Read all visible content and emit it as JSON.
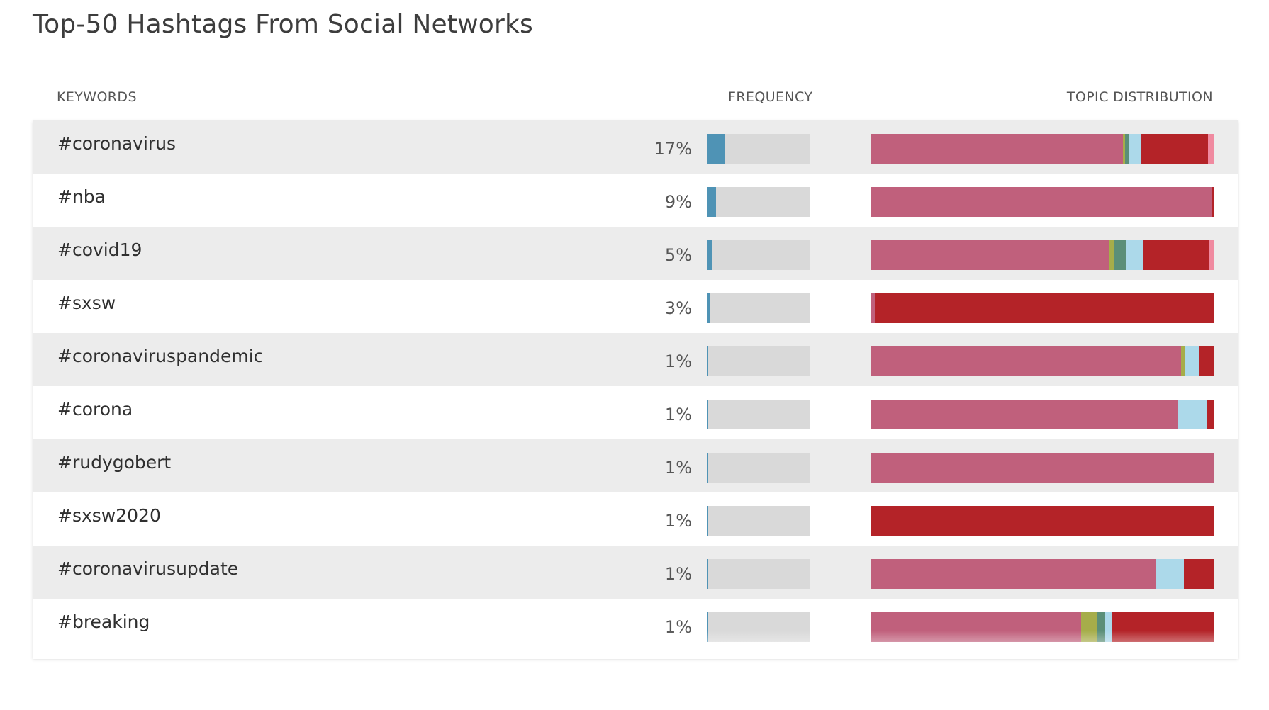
{
  "title": "Top-50 Hashtags From Social Networks",
  "headers": {
    "keywords": "KEYWORDS",
    "frequency": "FREQUENCY",
    "topic_distribution": "TOPIC DISTRIBUTION"
  },
  "colors": {
    "frequency_fill": "#4f93b5",
    "frequency_track": "#d9d9d9",
    "row_alt": "#ececec",
    "topic_palette": [
      "#c0607c",
      "#a6ad4a",
      "#5b8f78",
      "#acd9ea",
      "#b42328",
      "#f08aa0"
    ]
  },
  "chart_data": {
    "type": "table",
    "columns": [
      "KEYWORDS",
      "FREQUENCY",
      "TOPIC DISTRIBUTION"
    ],
    "rows": [
      {
        "keyword": "#coronavirus",
        "frequency_label": "17%",
        "frequency": 17,
        "topics": [
          {
            "color": "#c0607c",
            "share": 73.5
          },
          {
            "color": "#a6ad4a",
            "share": 0.6
          },
          {
            "color": "#5b8f78",
            "share": 1.2
          },
          {
            "color": "#acd9ea",
            "share": 3.3
          },
          {
            "color": "#b42328",
            "share": 19.8
          },
          {
            "color": "#f08aa0",
            "share": 1.6
          }
        ]
      },
      {
        "keyword": "#nba",
        "frequency_label": "9%",
        "frequency": 9,
        "topics": [
          {
            "color": "#c0607c",
            "share": 99.6
          },
          {
            "color": "#b42328",
            "share": 0.4
          }
        ]
      },
      {
        "keyword": "#covid19",
        "frequency_label": "5%",
        "frequency": 5,
        "topics": [
          {
            "color": "#c0607c",
            "share": 69.5
          },
          {
            "color": "#a6ad4a",
            "share": 1.5
          },
          {
            "color": "#5b8f78",
            "share": 3.3
          },
          {
            "color": "#acd9ea",
            "share": 4.9
          },
          {
            "color": "#b42328",
            "share": 19.3
          },
          {
            "color": "#f08aa0",
            "share": 1.5
          }
        ]
      },
      {
        "keyword": "#sxsw",
        "frequency_label": "3%",
        "frequency": 3,
        "topics": [
          {
            "color": "#c0607c",
            "share": 1.0
          },
          {
            "color": "#b42328",
            "share": 99.0
          }
        ]
      },
      {
        "keyword": "#coronaviruspandemic",
        "frequency_label": "1%",
        "frequency": 1,
        "topics": [
          {
            "color": "#c0607c",
            "share": 90.4
          },
          {
            "color": "#a6ad4a",
            "share": 1.4
          },
          {
            "color": "#acd9ea",
            "share": 3.9
          },
          {
            "color": "#b42328",
            "share": 4.3
          }
        ]
      },
      {
        "keyword": "#corona",
        "frequency_label": "1%",
        "frequency": 1,
        "topics": [
          {
            "color": "#c0607c",
            "share": 89.4
          },
          {
            "color": "#acd9ea",
            "share": 8.7
          },
          {
            "color": "#b42328",
            "share": 1.9
          }
        ]
      },
      {
        "keyword": "#rudygobert",
        "frequency_label": "1%",
        "frequency": 1,
        "topics": [
          {
            "color": "#c0607c",
            "share": 100
          }
        ]
      },
      {
        "keyword": "#sxsw2020",
        "frequency_label": "1%",
        "frequency": 1,
        "topics": [
          {
            "color": "#b42328",
            "share": 100
          }
        ]
      },
      {
        "keyword": "#coronavirusupdate",
        "frequency_label": "1%",
        "frequency": 1,
        "topics": [
          {
            "color": "#c0607c",
            "share": 83.1
          },
          {
            "color": "#acd9ea",
            "share": 8.3
          },
          {
            "color": "#b42328",
            "share": 8.6
          }
        ]
      },
      {
        "keyword": "#breaking",
        "frequency_label": "1%",
        "frequency": 1,
        "topics": [
          {
            "color": "#c0607c",
            "share": 61.3
          },
          {
            "color": "#a6ad4a",
            "share": 4.6
          },
          {
            "color": "#5b8f78",
            "share": 2.3
          },
          {
            "color": "#acd9ea",
            "share": 2.3
          },
          {
            "color": "#b42328",
            "share": 29.5
          }
        ]
      }
    ]
  }
}
